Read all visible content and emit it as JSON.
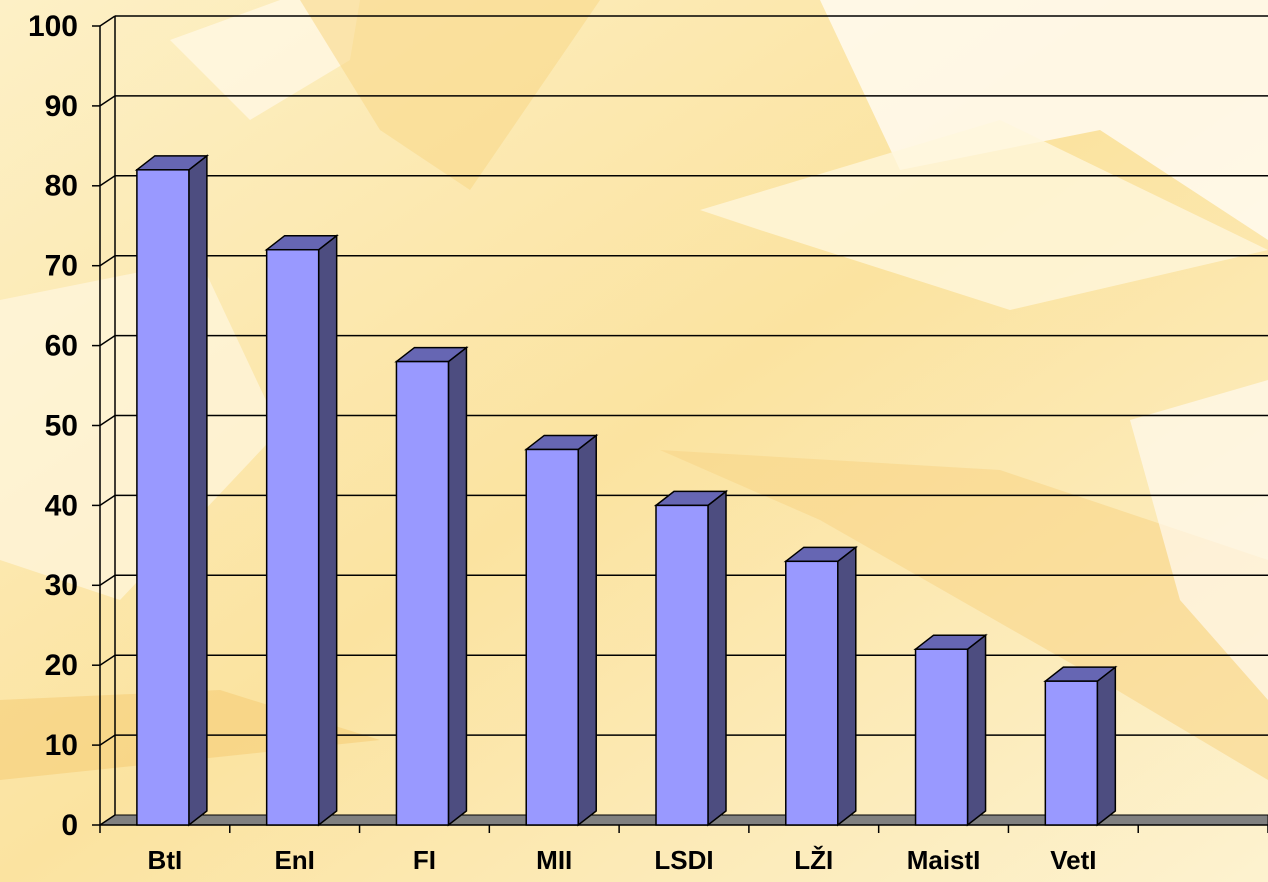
{
  "chart_data": {
    "type": "bar3d",
    "categories": [
      "BtI",
      "EnI",
      "FI",
      "MII",
      "LSDI",
      "LŽI",
      "MaistI",
      "VetI",
      null
    ],
    "values": [
      82,
      72,
      58,
      47,
      40,
      33,
      22,
      18,
      null
    ],
    "color": "#9999ff",
    "ylim": [
      0,
      100
    ],
    "yticks": [
      0,
      10,
      20,
      30,
      40,
      50,
      60,
      70,
      80,
      90,
      100
    ],
    "grid": true
  }
}
